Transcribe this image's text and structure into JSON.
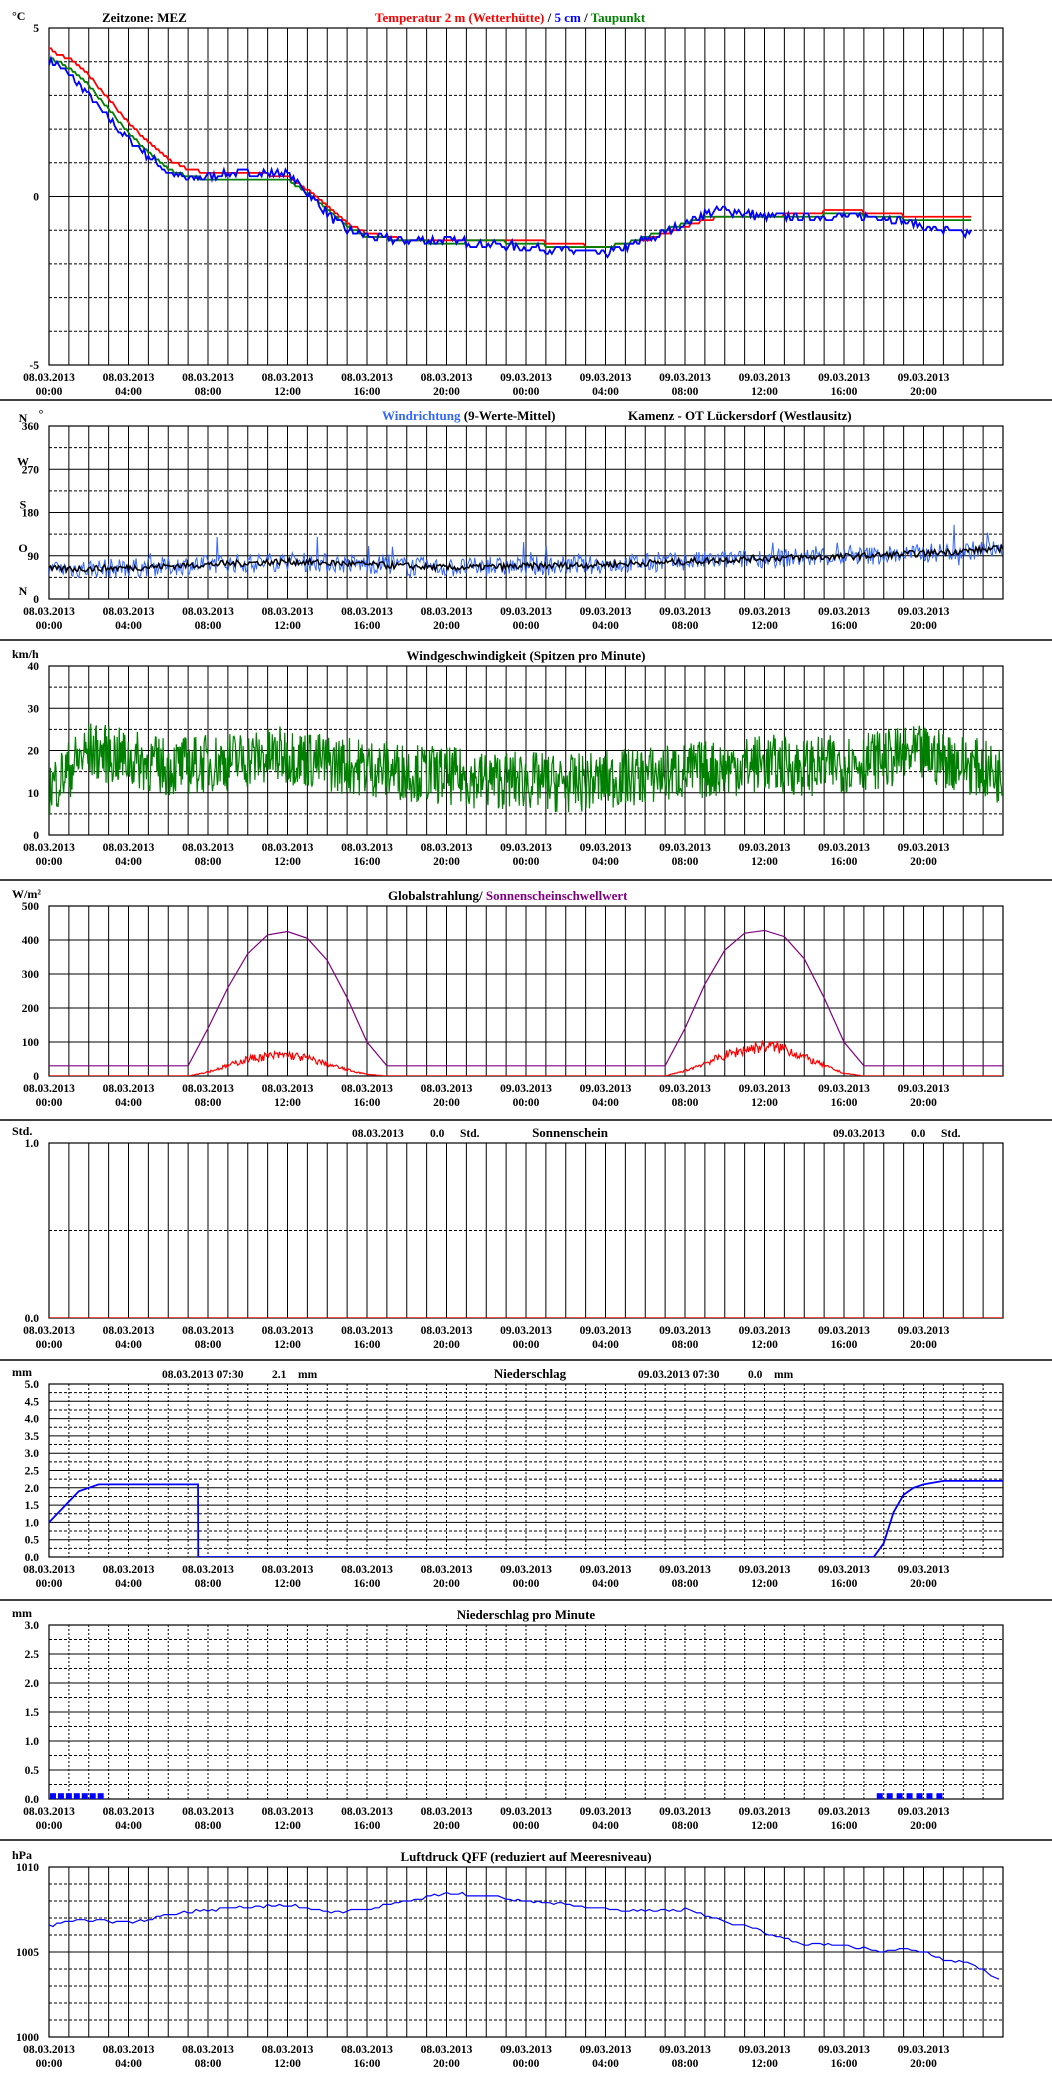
{
  "time_axis": {
    "labels": [
      [
        "08.03.2013",
        "00:00"
      ],
      [
        "08.03.2013",
        "04:00"
      ],
      [
        "08.03.2013",
        "08:00"
      ],
      [
        "08.03.2013",
        "12:00"
      ],
      [
        "08.03.2013",
        "16:00"
      ],
      [
        "08.03.2013",
        "20:00"
      ],
      [
        "09.03.2013",
        "00:00"
      ],
      [
        "09.03.2013",
        "04:00"
      ],
      [
        "09.03.2013",
        "08:00"
      ],
      [
        "09.03.2013",
        "12:00"
      ],
      [
        "09.03.2013",
        "16:00"
      ],
      [
        "09.03.2013",
        "20:00"
      ]
    ],
    "range_hours": [
      0,
      48
    ],
    "label_every_hours": 4,
    "gridline_every_hours": 1
  },
  "colors": {
    "temp_2m": "#ff0000",
    "temp_5cm": "#0000ff",
    "dewpoint": "#008000",
    "wind_dir": "#3366ff",
    "wind_dir_mean": "#000000",
    "wind_speed": "#008000",
    "global_rad": "#ff0000",
    "sunshine_threshold": "#800080",
    "sunshine": "#ff0000",
    "precip": "#0000ff",
    "pressure": "#0000ff",
    "grid": "#000000"
  },
  "chart_data": [
    {
      "id": "temperature",
      "type": "line",
      "unit_label": "°C",
      "header_left": "Zeitzone: MEZ",
      "legend": [
        {
          "text": "Temperatur 2 m (Wetterhütte)",
          "color": "#ff0000"
        },
        {
          "text": "  /  ",
          "color": "#000000"
        },
        {
          "text": "5 cm",
          "color": "#0000ff"
        },
        {
          "text": " / ",
          "color": "#000000"
        },
        {
          "text": "Taupunkt",
          "color": "#008000"
        }
      ],
      "ylim": [
        -5,
        5
      ],
      "y_ticks": [
        {
          "v": 5,
          "label": "5"
        },
        {
          "v": 0,
          "label": "0"
        },
        {
          "v": -5,
          "label": "-5"
        }
      ],
      "minor_y": [
        4,
        3,
        2,
        1,
        -1,
        -2,
        -3,
        -4
      ],
      "series": [
        {
          "key": "temp_2m",
          "x": [
            0,
            0.5,
            1,
            2,
            3,
            4,
            5,
            6,
            7,
            8,
            9,
            10,
            12,
            13,
            14,
            15,
            16,
            18,
            20,
            22,
            24,
            26,
            28,
            29,
            30,
            31,
            32,
            33,
            34,
            36,
            38,
            40,
            42,
            44,
            46,
            48
          ],
          "values": [
            4.4,
            4.2,
            4.1,
            3.6,
            2.9,
            2.2,
            1.6,
            1.1,
            0.8,
            0.7,
            0.7,
            0.7,
            0.6,
            0.2,
            -0.3,
            -0.8,
            -1.1,
            -1.3,
            -1.3,
            -1.3,
            -1.3,
            -1.4,
            -1.5,
            -1.4,
            -1.3,
            -1.1,
            -0.9,
            -0.7,
            -0.6,
            -0.6,
            -0.5,
            -0.4,
            -0.5,
            -0.6,
            -0.6,
            -0.6
          ]
        },
        {
          "key": "dewpoint",
          "x": [
            0,
            0.5,
            1,
            2,
            3,
            4,
            5,
            6,
            7,
            8,
            9,
            10,
            12,
            13,
            14,
            15,
            16,
            18,
            20,
            22,
            24,
            26,
            28,
            29,
            30,
            31,
            32,
            33,
            34,
            36,
            38,
            40,
            42,
            44,
            46,
            48
          ],
          "values": [
            4.1,
            4.0,
            3.8,
            3.3,
            2.6,
            1.9,
            1.3,
            0.8,
            0.6,
            0.5,
            0.5,
            0.5,
            0.5,
            0.1,
            -0.4,
            -0.9,
            -1.2,
            -1.3,
            -1.4,
            -1.3,
            -1.4,
            -1.5,
            -1.5,
            -1.4,
            -1.2,
            -1.0,
            -0.8,
            -0.6,
            -0.6,
            -0.6,
            -0.6,
            -0.5,
            -0.6,
            -0.7,
            -0.7,
            -0.7
          ]
        },
        {
          "key": "temp_5cm",
          "x": [
            0,
            0.5,
            1,
            2,
            3,
            4,
            5,
            6,
            7,
            8,
            9,
            10,
            12,
            13,
            14,
            15,
            16,
            18,
            20,
            22,
            24,
            26,
            28,
            29,
            30,
            31,
            32,
            33,
            34,
            36,
            38,
            40,
            42,
            44,
            46,
            48
          ],
          "values": [
            4.0,
            3.9,
            3.6,
            3.0,
            2.3,
            1.7,
            1.2,
            0.7,
            0.5,
            0.6,
            0.7,
            0.7,
            0.7,
            0.1,
            -0.5,
            -1.0,
            -1.2,
            -1.3,
            -1.3,
            -1.4,
            -1.5,
            -1.6,
            -1.7,
            -1.5,
            -1.3,
            -1.1,
            -0.8,
            -0.5,
            -0.4,
            -0.6,
            -0.6,
            -0.6,
            -0.6,
            -0.9,
            -1.1,
            -1.1
          ]
        }
      ]
    },
    {
      "id": "wind_direction",
      "type": "line",
      "legend": [
        {
          "text": "Windrichtung",
          "color": "#3366ff"
        },
        {
          "text": " (9-Werte-Mittel)",
          "color": "#000000"
        }
      ],
      "station": "Kamenz - OT Lückersdorf (Westlausitz)",
      "unit_label": "°",
      "ylim": [
        0,
        360
      ],
      "y_ticks": [
        {
          "v": 360,
          "label": "360"
        },
        {
          "v": 270,
          "label": "270"
        },
        {
          "v": 180,
          "label": "180"
        },
        {
          "v": 90,
          "label": "90"
        },
        {
          "v": 0,
          "label": "0"
        }
      ],
      "compass": [
        {
          "v": 360,
          "label": "N"
        },
        {
          "v": 270,
          "label": "W"
        },
        {
          "v": 180,
          "label": "S"
        },
        {
          "v": 90,
          "label": "O"
        },
        {
          "v": 0,
          "label": "N"
        }
      ],
      "minor_y": [
        315,
        225,
        135,
        45
      ],
      "series": [
        {
          "key": "wind_dir_mean",
          "x": [
            0,
            4,
            8,
            12,
            16,
            20,
            24,
            28,
            32,
            36,
            40,
            44,
            48
          ],
          "values": [
            62,
            65,
            72,
            78,
            72,
            65,
            68,
            72,
            78,
            85,
            88,
            95,
            105
          ]
        }
      ]
    },
    {
      "id": "wind_speed",
      "type": "line",
      "title": "Windgeschwindigkeit (Spitzen pro Minute)",
      "unit_label": "km/h",
      "ylim": [
        0,
        40
      ],
      "y_ticks": [
        {
          "v": 40,
          "label": "40"
        },
        {
          "v": 30,
          "label": "30"
        },
        {
          "v": 20,
          "label": "20"
        },
        {
          "v": 10,
          "label": "10"
        },
        {
          "v": 0,
          "label": "0"
        }
      ],
      "minor_y": [
        35,
        25,
        15,
        5
      ],
      "series": [
        {
          "key": "wind_speed",
          "x": [
            0,
            2,
            4,
            6,
            8,
            10,
            12,
            14,
            16,
            18,
            20,
            22,
            24,
            26,
            28,
            30,
            32,
            34,
            36,
            38,
            40,
            42,
            44,
            46,
            48
          ],
          "values": [
            11,
            20,
            18,
            16,
            17,
            18,
            19,
            17,
            16,
            15,
            14,
            13,
            13,
            12,
            13,
            14,
            15,
            16,
            17,
            16,
            17,
            18,
            19,
            17,
            14
          ]
        }
      ]
    },
    {
      "id": "radiation",
      "type": "line",
      "legend": [
        {
          "text": "Globalstrahlung/ ",
          "color": "#000000"
        },
        {
          "text": "Sonnenscheinschwellwert",
          "color": "#800080"
        }
      ],
      "unit_label": "W/m²",
      "ylim": [
        0,
        500
      ],
      "y_ticks": [
        {
          "v": 500,
          "label": "500"
        },
        {
          "v": 400,
          "label": "400"
        },
        {
          "v": 300,
          "label": "300"
        },
        {
          "v": 200,
          "label": "200"
        },
        {
          "v": 100,
          "label": "100"
        },
        {
          "v": 0,
          "label": "0"
        }
      ],
      "minor_y": [],
      "series": [
        {
          "key": "sunshine_threshold",
          "x": [
            0,
            7,
            8,
            9,
            10,
            11,
            12,
            13,
            14,
            15,
            16,
            17,
            31,
            32,
            33,
            34,
            35,
            36,
            37,
            38,
            39,
            40,
            41,
            48
          ],
          "values": [
            30,
            30,
            140,
            260,
            360,
            415,
            425,
            405,
            340,
            230,
            100,
            30,
            30,
            140,
            270,
            370,
            420,
            428,
            410,
            345,
            230,
            100,
            30,
            30
          ]
        },
        {
          "key": "global_rad",
          "x": [
            0,
            7,
            8,
            9,
            10,
            11,
            12,
            13,
            14,
            15,
            16,
            17,
            31,
            32,
            33,
            34,
            35,
            36,
            37,
            38,
            39,
            40,
            41,
            48
          ],
          "values": [
            0,
            0,
            12,
            30,
            50,
            58,
            62,
            52,
            35,
            18,
            5,
            0,
            0,
            15,
            38,
            60,
            78,
            88,
            82,
            55,
            30,
            8,
            0,
            0
          ]
        }
      ]
    },
    {
      "id": "sunshine",
      "type": "line",
      "unit_label": "Std.",
      "title": "Sonnenschein",
      "day_totals": [
        {
          "date": "08.03.2013",
          "value": "0.0",
          "unit": "Std."
        },
        {
          "date": "09.03.2013",
          "value": "0.0",
          "unit": "Std."
        }
      ],
      "ylim": [
        0,
        1
      ],
      "y_ticks": [
        {
          "v": 1,
          "label": "1.0"
        },
        {
          "v": 0,
          "label": "0.0"
        }
      ],
      "minor_y": [
        0.5
      ],
      "series": [
        {
          "key": "sunshine",
          "x": [
            0,
            48
          ],
          "values": [
            0,
            0
          ]
        }
      ]
    },
    {
      "id": "precipitation",
      "type": "line",
      "unit_label": "mm",
      "title": "Niederschlag",
      "day_totals": [
        {
          "date": "08.03.2013 07:30",
          "value": "2.1",
          "unit": "mm"
        },
        {
          "date": "09.03.2013 07:30",
          "value": "0.0",
          "unit": "mm"
        }
      ],
      "ylim": [
        0,
        5
      ],
      "y_ticks": [
        {
          "v": 5,
          "label": "5.0"
        },
        {
          "v": 4.5,
          "label": "4.5"
        },
        {
          "v": 4,
          "label": "4.0"
        },
        {
          "v": 3.5,
          "label": "3.5"
        },
        {
          "v": 3,
          "label": "3.0"
        },
        {
          "v": 2.5,
          "label": "2.5"
        },
        {
          "v": 2,
          "label": "2.0"
        },
        {
          "v": 1.5,
          "label": "1.5"
        },
        {
          "v": 1,
          "label": "1.0"
        },
        {
          "v": 0.5,
          "label": "0.5"
        },
        {
          "v": 0,
          "label": "0.0"
        }
      ],
      "minor_y": [
        4.75,
        4.25,
        3.75,
        3.25,
        2.75,
        2.25,
        1.75,
        1.25,
        0.75,
        0.25
      ],
      "dense_grid": true,
      "series": [
        {
          "key": "precip",
          "x": [
            0,
            0.5,
            1,
            1.5,
            2,
            2.5,
            3,
            7.5,
            7.51,
            41.5,
            42,
            42.5,
            43,
            43.5,
            44,
            45,
            48
          ],
          "values": [
            1.0,
            1.3,
            1.6,
            1.9,
            2.0,
            2.1,
            2.1,
            2.1,
            0,
            0,
            0.4,
            1.3,
            1.8,
            2.0,
            2.1,
            2.2,
            2.2
          ]
        }
      ]
    },
    {
      "id": "precip_per_minute",
      "type": "bar",
      "unit_label": "mm",
      "title": "Niederschlag pro Minute",
      "ylim": [
        0,
        3
      ],
      "y_ticks": [
        {
          "v": 3,
          "label": "3.0"
        },
        {
          "v": 2.5,
          "label": "2.5"
        },
        {
          "v": 2,
          "label": "2.0"
        },
        {
          "v": 1.5,
          "label": "1.5"
        },
        {
          "v": 1,
          "label": "1.0"
        },
        {
          "v": 0.5,
          "label": "0.5"
        },
        {
          "v": 0,
          "label": "0.0"
        }
      ],
      "minor_y": [
        2.75,
        2.25,
        1.75,
        1.25,
        0.75,
        0.25
      ],
      "dense_grid": true,
      "series": [
        {
          "key": "precip",
          "x": [
            0.2,
            0.6,
            1.0,
            1.4,
            1.8,
            2.2,
            2.6,
            41.8,
            42.3,
            42.8,
            43.3,
            43.8,
            44.3,
            44.8
          ],
          "values": [
            0.1,
            0.1,
            0.1,
            0.1,
            0.1,
            0.1,
            0.1,
            0.1,
            0.1,
            0.1,
            0.1,
            0.1,
            0.1,
            0.1
          ]
        }
      ]
    },
    {
      "id": "pressure",
      "type": "line",
      "unit_label": "hPa",
      "title": "Luftdruck QFF (reduziert auf Meeresniveau)",
      "ylim": [
        1000,
        1010
      ],
      "y_ticks": [
        {
          "v": 1010,
          "label": "1010"
        },
        {
          "v": 1005,
          "label": "1005"
        },
        {
          "v": 1000,
          "label": "1000"
        }
      ],
      "minor_y": [
        1009,
        1008,
        1007,
        1006,
        1004,
        1003,
        1002,
        1001
      ],
      "series": [
        {
          "key": "pressure",
          "x": [
            0,
            1,
            2,
            4,
            6,
            8,
            10,
            12,
            14,
            16,
            18,
            20,
            22,
            24,
            26,
            28,
            30,
            32,
            33,
            34,
            35,
            36,
            37,
            38,
            40,
            42,
            43,
            44,
            45,
            46,
            47,
            48
          ],
          "values": [
            1006.5,
            1006.8,
            1006.9,
            1006.7,
            1007.2,
            1007.5,
            1007.6,
            1007.8,
            1007.3,
            1007.5,
            1008.0,
            1008.5,
            1008.3,
            1008.0,
            1007.8,
            1007.5,
            1007.4,
            1007.5,
            1007.2,
            1006.8,
            1006.5,
            1006.2,
            1005.8,
            1005.5,
            1005.4,
            1005.0,
            1005.2,
            1005.0,
            1004.6,
            1004.4,
            1004.0,
            1003.2
          ]
        }
      ]
    }
  ]
}
